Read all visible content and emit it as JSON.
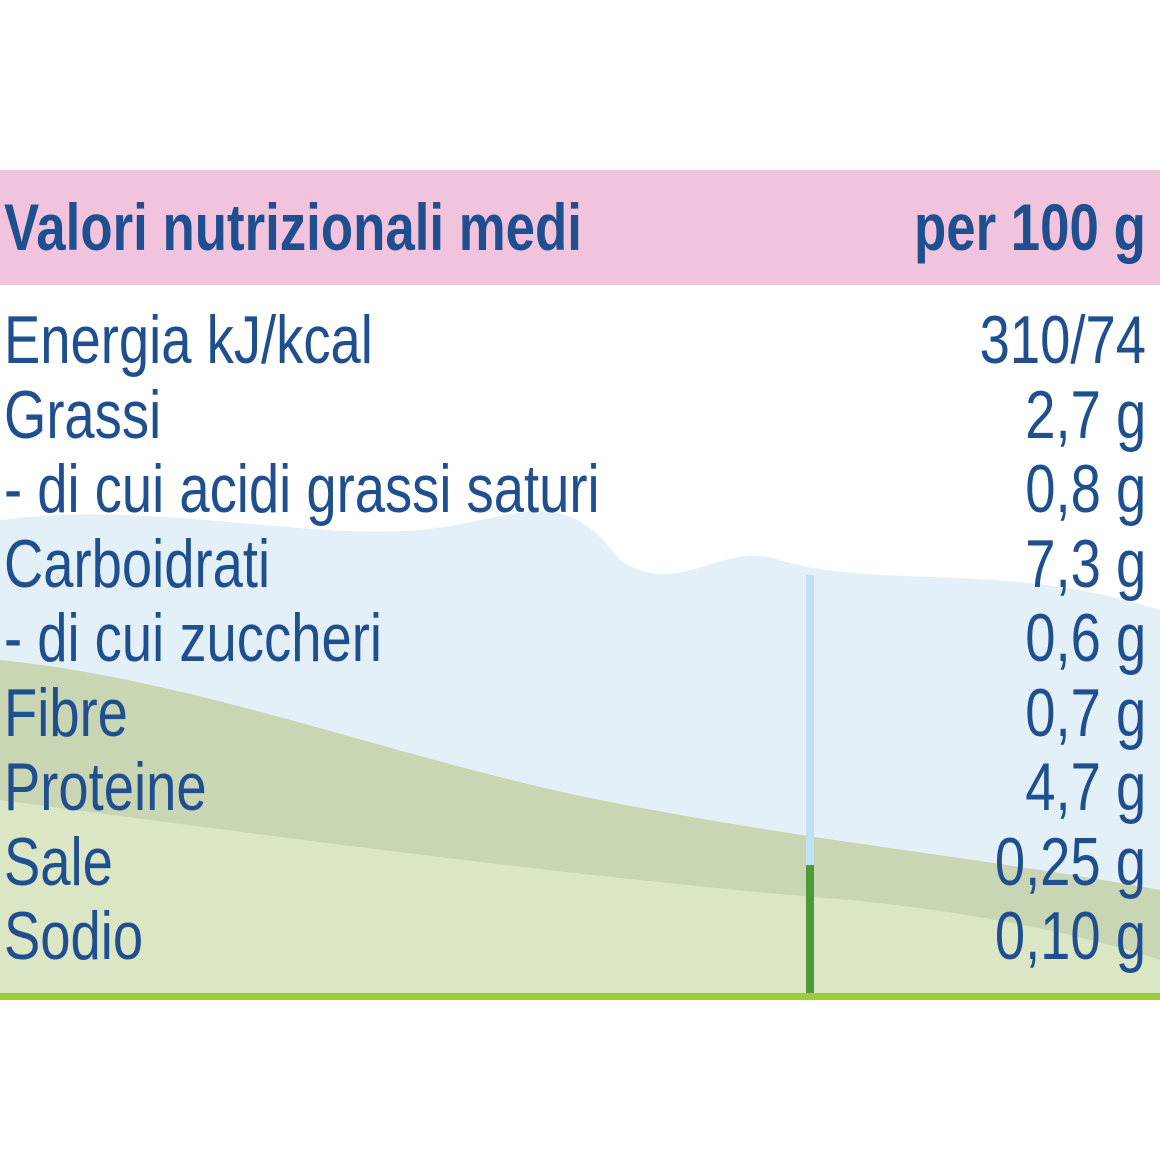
{
  "header": {
    "title": "Valori nutrizionali medi",
    "unit": "per 100 g"
  },
  "table": {
    "rows": [
      [
        "Energia kJ/kcal",
        "310/74"
      ],
      [
        "Grassi",
        "2,7 g"
      ],
      [
        "- di cui acidi grassi saturi",
        "0,8 g"
      ],
      [
        "Carboidrati",
        "7,3 g"
      ],
      [
        "- di cui zuccheri",
        "0,6 g"
      ],
      [
        "Fibre",
        "0,7 g"
      ],
      [
        "Proteine",
        "4,7 g"
      ],
      [
        "Sale",
        "0,25 g"
      ],
      [
        "Sodio",
        "0,10 g"
      ]
    ]
  }
}
